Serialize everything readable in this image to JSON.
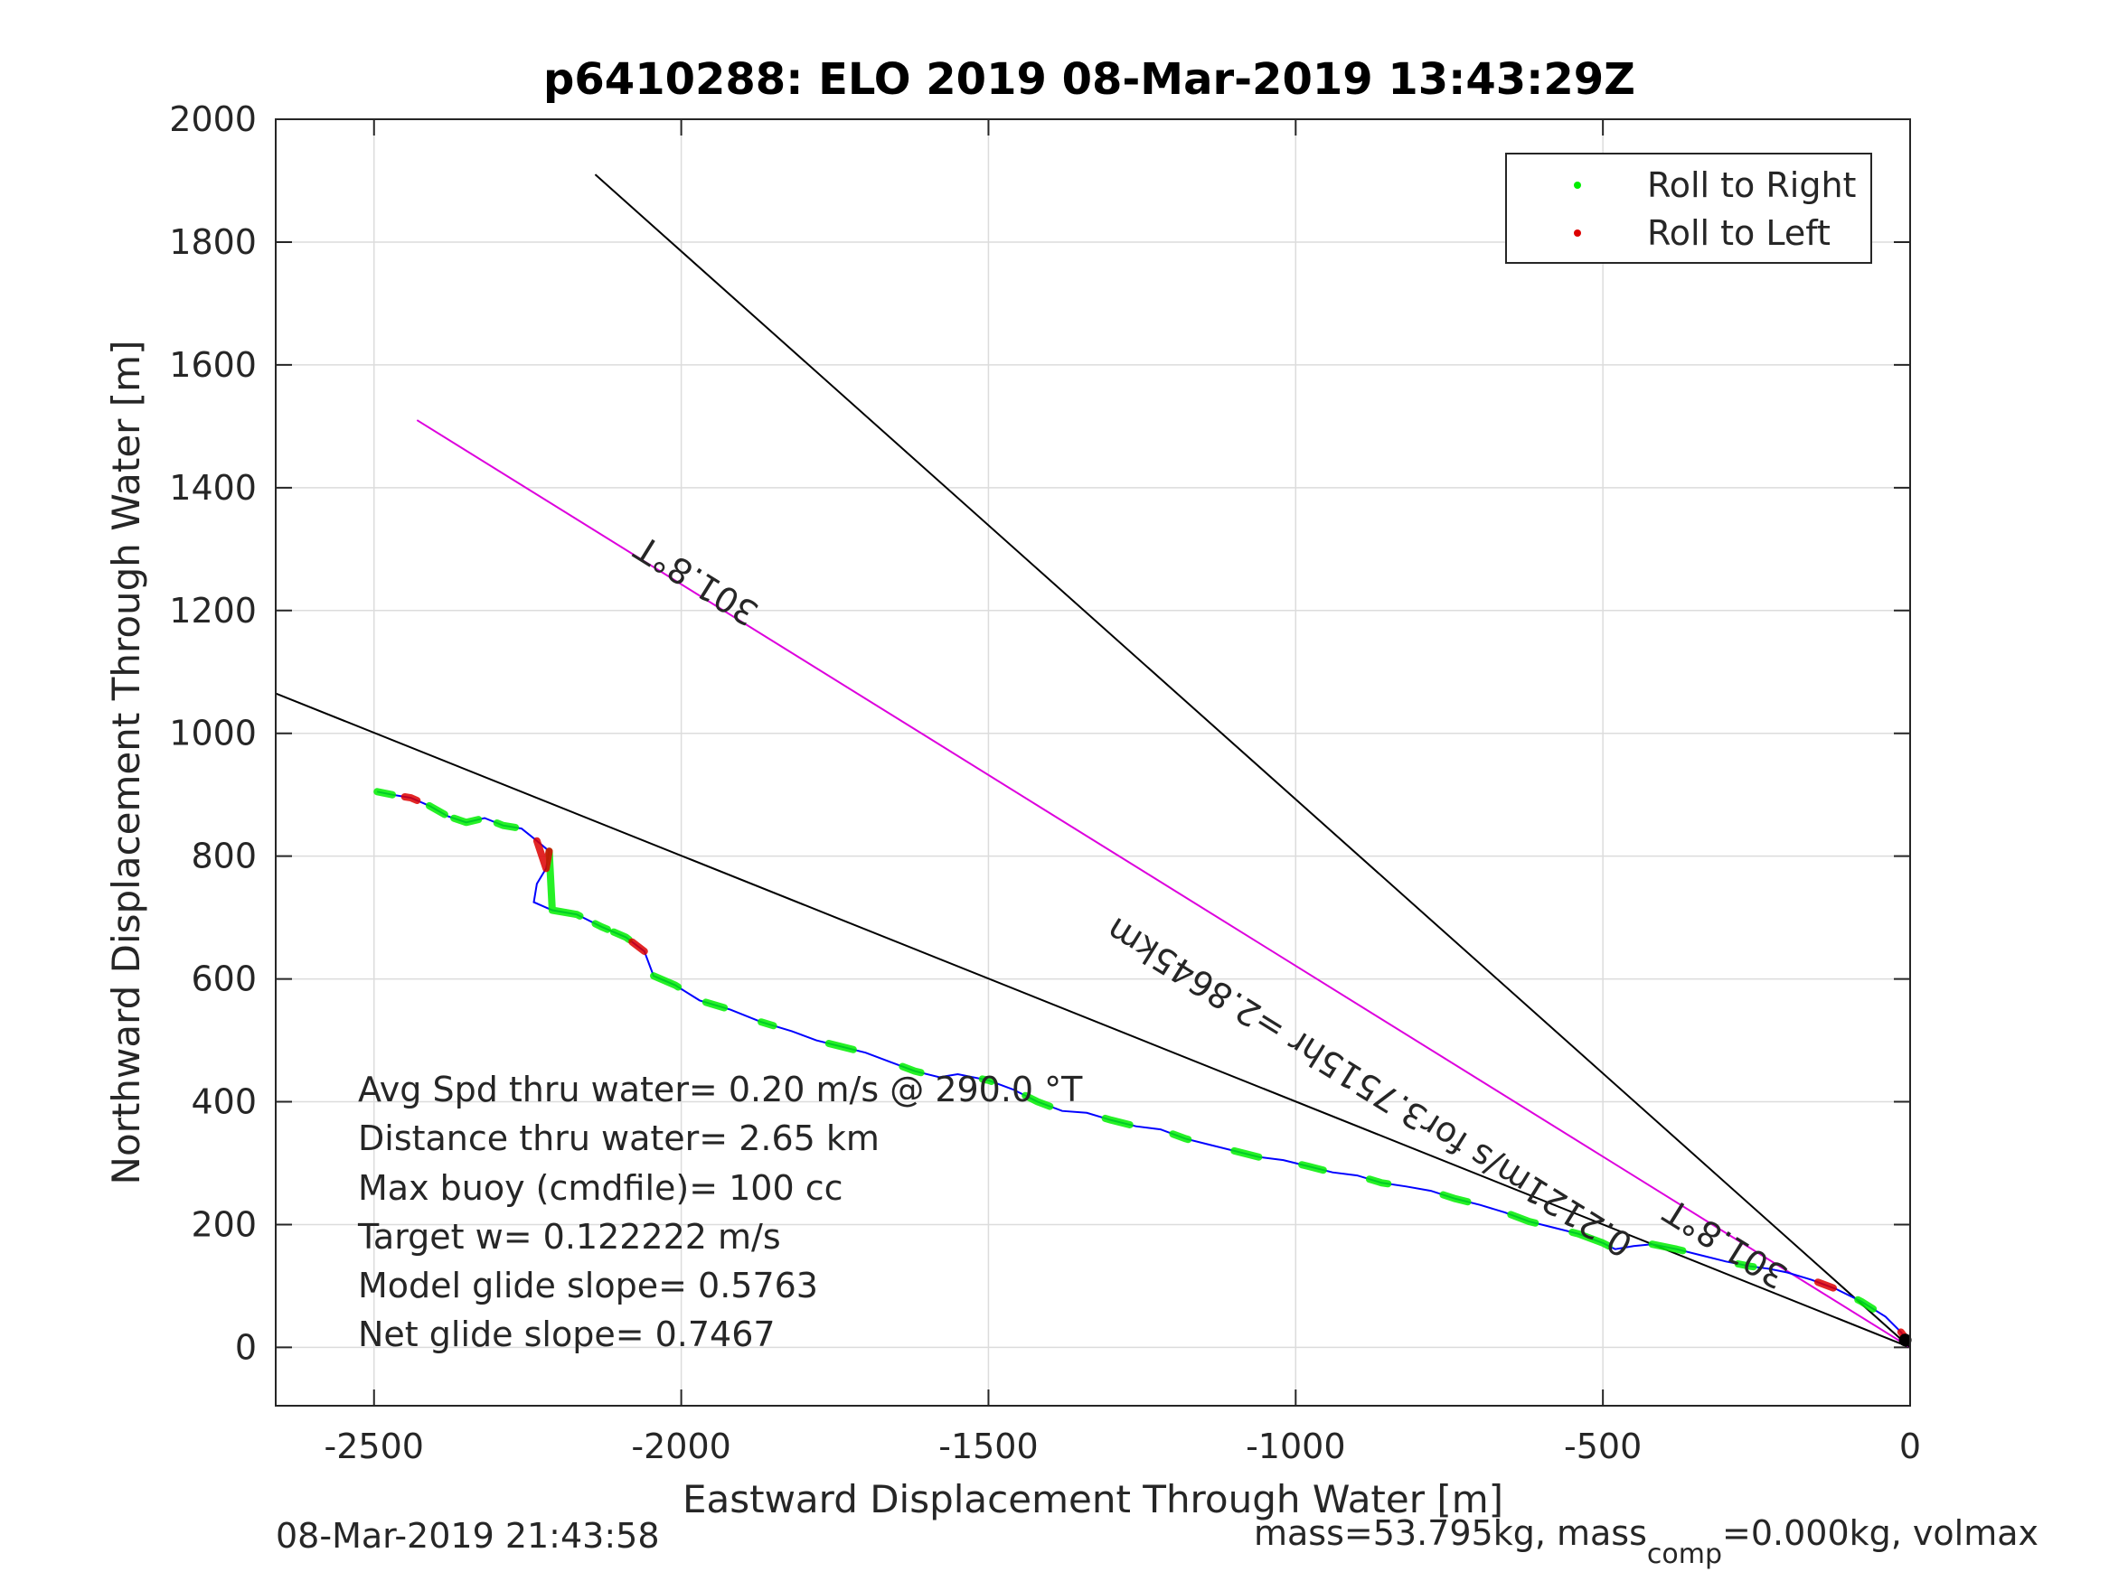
{
  "chart_data": {
    "type": "line",
    "title": "p6410288: ELO 2019 08-Mar-2019 13:43:29Z",
    "xlabel": "Eastward Displacement Through Water [m]",
    "ylabel": "Northward Displacement Through Water [m]",
    "xlim": [
      -2660,
      0
    ],
    "ylim": [
      -95,
      2000
    ],
    "xticks": [
      -2500,
      -2000,
      -1500,
      -1000,
      -500,
      0
    ],
    "yticks": [
      0,
      200,
      400,
      600,
      800,
      1000,
      1200,
      1400,
      1600,
      1800,
      2000
    ],
    "xtick_labels": [
      "-2500",
      "-2000",
      "-1500",
      "-1000",
      "-500",
      "0"
    ],
    "ytick_labels": [
      "0",
      "200",
      "400",
      "600",
      "800",
      "1000",
      "1200",
      "1400",
      "1600",
      "1800",
      "2000"
    ],
    "grid": true,
    "legend_position": "top-right",
    "legend": [
      {
        "label": "Roll to Right",
        "color": "#00ee00"
      },
      {
        "label": "Roll to Left",
        "color": "#dd0000"
      }
    ],
    "track": {
      "color": "#0000ff",
      "points": [
        [
          -2495,
          905
        ],
        [
          -2470,
          900
        ],
        [
          -2440,
          895
        ],
        [
          -2410,
          882
        ],
        [
          -2380,
          865
        ],
        [
          -2350,
          855
        ],
        [
          -2320,
          862
        ],
        [
          -2290,
          850
        ],
        [
          -2260,
          845
        ],
        [
          -2235,
          825
        ],
        [
          -2215,
          808
        ],
        [
          -2220,
          780
        ],
        [
          -2235,
          755
        ],
        [
          -2240,
          725
        ],
        [
          -2210,
          712
        ],
        [
          -2170,
          705
        ],
        [
          -2130,
          685
        ],
        [
          -2090,
          668
        ],
        [
          -2060,
          645
        ],
        [
          -2045,
          605
        ],
        [
          -2010,
          590
        ],
        [
          -1970,
          565
        ],
        [
          -1920,
          550
        ],
        [
          -1870,
          530
        ],
        [
          -1820,
          515
        ],
        [
          -1780,
          500
        ],
        [
          -1740,
          490
        ],
        [
          -1700,
          480
        ],
        [
          -1660,
          465
        ],
        [
          -1620,
          450
        ],
        [
          -1580,
          440
        ],
        [
          -1550,
          445
        ],
        [
          -1500,
          435
        ],
        [
          -1460,
          420
        ],
        [
          -1420,
          400
        ],
        [
          -1380,
          385
        ],
        [
          -1340,
          382
        ],
        [
          -1300,
          370
        ],
        [
          -1260,
          360
        ],
        [
          -1220,
          355
        ],
        [
          -1180,
          340
        ],
        [
          -1140,
          330
        ],
        [
          -1100,
          320
        ],
        [
          -1060,
          310
        ],
        [
          -1020,
          305
        ],
        [
          -980,
          295
        ],
        [
          -940,
          285
        ],
        [
          -900,
          280
        ],
        [
          -860,
          268
        ],
        [
          -820,
          262
        ],
        [
          -780,
          255
        ],
        [
          -740,
          242
        ],
        [
          -700,
          232
        ],
        [
          -660,
          220
        ],
        [
          -620,
          205
        ],
        [
          -580,
          195
        ],
        [
          -540,
          185
        ],
        [
          -500,
          170
        ],
        [
          -480,
          160
        ],
        [
          -450,
          165
        ],
        [
          -420,
          168
        ],
        [
          -380,
          160
        ],
        [
          -340,
          150
        ],
        [
          -300,
          140
        ],
        [
          -260,
          132
        ],
        [
          -230,
          128
        ],
        [
          -200,
          122
        ],
        [
          -160,
          110
        ],
        [
          -120,
          95
        ],
        [
          -80,
          75
        ],
        [
          -40,
          50
        ],
        [
          -15,
          25
        ],
        [
          0,
          5
        ]
      ]
    },
    "roll_right_segments": [
      [
        -2495,
        -2470
      ],
      [
        -2410,
        -2385
      ],
      [
        -2370,
        -2330
      ],
      [
        -2300,
        -2270
      ],
      [
        -2215,
        -2165
      ],
      [
        -2140,
        -2120
      ],
      [
        -2110,
        -2085
      ],
      [
        -2045,
        -2005
      ],
      [
        -1960,
        -1930
      ],
      [
        -1870,
        -1850
      ],
      [
        -1760,
        -1720
      ],
      [
        -1640,
        -1610
      ],
      [
        -1510,
        -1495
      ],
      [
        -1440,
        -1400
      ],
      [
        -1310,
        -1270
      ],
      [
        -1200,
        -1175
      ],
      [
        -1100,
        -1060
      ],
      [
        -990,
        -955
      ],
      [
        -880,
        -850
      ],
      [
        -760,
        -720
      ],
      [
        -650,
        -610
      ],
      [
        -550,
        -490
      ],
      [
        -420,
        -370
      ],
      [
        -280,
        -255
      ],
      [
        -85,
        -60
      ]
    ],
    "roll_left_segments": [
      [
        -2450,
        -2430
      ],
      [
        -2235,
        -2215
      ],
      [
        -2080,
        -2060
      ],
      [
        -150,
        -125
      ],
      [
        -15,
        -5
      ]
    ],
    "heading_lines": [
      {
        "x": [
          -2660,
          0
        ],
        "y": [
          1065,
          0
        ],
        "color": "#000000"
      },
      {
        "x": [
          -2430,
          0
        ],
        "y": [
          1510,
          0
        ],
        "color": "#dd00dd"
      },
      {
        "x": [
          -2140,
          0
        ],
        "y": [
          1910,
          0
        ],
        "color": "#000000"
      }
    ],
    "rotated_labels": [
      {
        "text": "301.8°T",
        "x": -1965,
        "y": 1265,
        "angle": 31.8
      },
      {
        "text": "0.2121m/s for3.7515hr =2.8645km",
        "x": -870,
        "y": 440,
        "angle": 31.8
      },
      {
        "text": "301.8°T",
        "x": -290,
        "y": 185,
        "angle": 31.8
      }
    ],
    "annotations": [
      "Avg Spd thru water=  0.20 m/s @ 290.0 °T",
      "Distance thru water=  2.65 km",
      "Max buoy (cmdfile)= 100 cc",
      "Target w= 0.122222 m/s",
      "Model glide slope= 0.5763",
      "Net glide slope= 0.7467"
    ],
    "footer_left": "08-Mar-2019 21:43:58",
    "footer_right_1": "mass=53.795kg, mass",
    "footer_right_sub": "comp",
    "footer_right_2": "=0.000kg, volmax"
  }
}
